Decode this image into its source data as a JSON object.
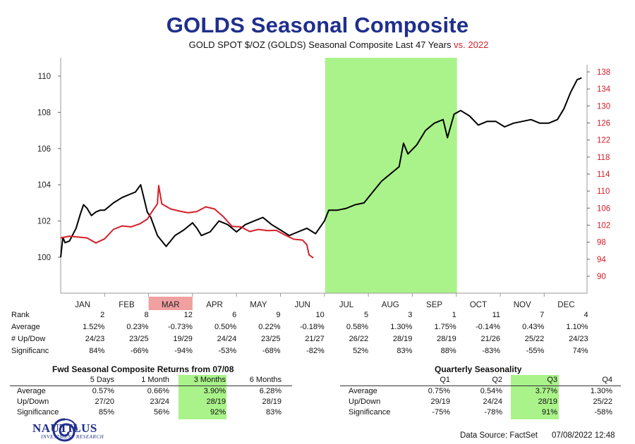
{
  "header": {
    "title": "GOLDS Seasonal Composite",
    "subtitle": "GOLD SPOT $/OZ (GOLDS) Seasonal Composite Last 47 Years",
    "vs_label": "vs. 2022"
  },
  "colors": {
    "title": "#1f2f8c",
    "composite_line": "#000000",
    "current_line": "#d4202a",
    "highlight_green": "#aaf38a",
    "highlight_red": "#f0a0a0"
  },
  "chart_data": {
    "type": "line",
    "title": "GOLD SPOT $/OZ (GOLDS) Seasonal Composite Last 47 Years",
    "months": [
      "JAN",
      "FEB",
      "MAR",
      "APR",
      "MAY",
      "JUN",
      "JUL",
      "AUG",
      "SEP",
      "OCT",
      "NOV",
      "DEC"
    ],
    "highlight_green_span_months": [
      6,
      9
    ],
    "highlight_red_month": "MAR",
    "y_left": {
      "ticks": [
        100,
        102,
        104,
        106,
        108,
        110
      ],
      "range": [
        98,
        110.7
      ]
    },
    "y_right": {
      "ticks": [
        90,
        94,
        98,
        102,
        106,
        110,
        114,
        118,
        122,
        126,
        130,
        134,
        138
      ],
      "range": [
        83.2,
        140.3
      ]
    },
    "series": [
      {
        "name": "Seasonal Composite (47 Years)",
        "axis": "left",
        "points": [
          [
            0,
            100.0
          ],
          [
            0.05,
            101.1
          ],
          [
            0.1,
            100.8
          ],
          [
            0.2,
            100.9
          ],
          [
            0.35,
            101.6
          ],
          [
            0.45,
            102.4
          ],
          [
            0.52,
            102.9
          ],
          [
            0.6,
            102.7
          ],
          [
            0.7,
            102.3
          ],
          [
            0.8,
            102.5
          ],
          [
            0.9,
            102.6
          ],
          [
            1.0,
            102.6
          ],
          [
            1.2,
            103.0
          ],
          [
            1.4,
            103.3
          ],
          [
            1.6,
            103.5
          ],
          [
            1.7,
            103.6
          ],
          [
            1.82,
            104.0
          ],
          [
            1.9,
            103.2
          ],
          [
            1.97,
            102.5
          ],
          [
            2.05,
            102.2
          ],
          [
            2.2,
            101.2
          ],
          [
            2.4,
            100.6
          ],
          [
            2.6,
            101.2
          ],
          [
            2.8,
            101.5
          ],
          [
            3.0,
            101.9
          ],
          [
            3.1,
            101.6
          ],
          [
            3.2,
            101.2
          ],
          [
            3.4,
            101.4
          ],
          [
            3.6,
            102.0
          ],
          [
            3.8,
            101.8
          ],
          [
            4.0,
            101.4
          ],
          [
            4.2,
            101.8
          ],
          [
            4.4,
            102.0
          ],
          [
            4.6,
            102.2
          ],
          [
            4.8,
            101.8
          ],
          [
            5.0,
            101.5
          ],
          [
            5.2,
            101.2
          ],
          [
            5.4,
            101.4
          ],
          [
            5.6,
            101.6
          ],
          [
            5.8,
            101.3
          ],
          [
            6.0,
            102.0
          ],
          [
            6.1,
            102.6
          ],
          [
            6.3,
            102.6
          ],
          [
            6.5,
            102.7
          ],
          [
            6.7,
            102.9
          ],
          [
            6.9,
            103.0
          ],
          [
            7.1,
            103.6
          ],
          [
            7.3,
            104.2
          ],
          [
            7.5,
            104.6
          ],
          [
            7.7,
            105.0
          ],
          [
            7.8,
            106.3
          ],
          [
            7.9,
            105.7
          ],
          [
            8.1,
            106.2
          ],
          [
            8.3,
            107.0
          ],
          [
            8.5,
            107.4
          ],
          [
            8.7,
            107.6
          ],
          [
            8.8,
            106.6
          ],
          [
            8.95,
            107.9
          ],
          [
            9.1,
            108.1
          ],
          [
            9.3,
            107.8
          ],
          [
            9.5,
            107.3
          ],
          [
            9.7,
            107.5
          ],
          [
            9.9,
            107.5
          ],
          [
            10.1,
            107.2
          ],
          [
            10.3,
            107.4
          ],
          [
            10.5,
            107.5
          ],
          [
            10.7,
            107.6
          ],
          [
            10.9,
            107.4
          ],
          [
            11.1,
            107.4
          ],
          [
            11.3,
            107.6
          ],
          [
            11.45,
            108.2
          ],
          [
            11.6,
            109.1
          ],
          [
            11.75,
            109.8
          ],
          [
            11.85,
            109.9
          ]
        ]
      },
      {
        "name": "2022",
        "axis": "right",
        "points": [
          [
            0,
            99.0
          ],
          [
            0.2,
            99.4
          ],
          [
            0.4,
            99.2
          ],
          [
            0.6,
            99.0
          ],
          [
            0.8,
            97.8
          ],
          [
            1.0,
            98.8
          ],
          [
            1.2,
            101.0
          ],
          [
            1.4,
            101.8
          ],
          [
            1.6,
            101.6
          ],
          [
            1.8,
            102.3
          ],
          [
            1.97,
            103.4
          ],
          [
            2.1,
            105.5
          ],
          [
            2.2,
            107.0
          ],
          [
            2.23,
            111.3
          ],
          [
            2.3,
            107.0
          ],
          [
            2.5,
            105.8
          ],
          [
            2.7,
            105.3
          ],
          [
            2.9,
            104.9
          ],
          [
            3.1,
            105.2
          ],
          [
            3.3,
            106.3
          ],
          [
            3.5,
            105.8
          ],
          [
            3.7,
            104.0
          ],
          [
            3.9,
            101.7
          ],
          [
            4.1,
            101.6
          ],
          [
            4.3,
            100.5
          ],
          [
            4.5,
            101.0
          ],
          [
            4.7,
            100.7
          ],
          [
            4.9,
            100.8
          ],
          [
            5.1,
            99.7
          ],
          [
            5.3,
            98.7
          ],
          [
            5.5,
            98.5
          ],
          [
            5.6,
            97.4
          ],
          [
            5.65,
            95.0
          ],
          [
            5.75,
            94.3
          ]
        ]
      }
    ]
  },
  "stats": {
    "row_labels": [
      "Rank",
      "Average",
      "# Up/Dow",
      "Significanc"
    ],
    "months": [
      {
        "rank": "2",
        "avg": "1.52%",
        "updown": "24/23",
        "sig": "84%"
      },
      {
        "rank": "8",
        "avg": "0.23%",
        "updown": "23/25",
        "sig": "-66%"
      },
      {
        "rank": "12",
        "avg": "-0.73%",
        "updown": "19/29",
        "sig": "-94%"
      },
      {
        "rank": "6",
        "avg": "0.50%",
        "updown": "24/24",
        "sig": "-53%"
      },
      {
        "rank": "9",
        "avg": "0.22%",
        "updown": "23/25",
        "sig": "-68%"
      },
      {
        "rank": "10",
        "avg": "-0.18%",
        "updown": "21/27",
        "sig": "-82%"
      },
      {
        "rank": "5",
        "avg": "0.58%",
        "updown": "26/22",
        "sig": "52%"
      },
      {
        "rank": "3",
        "avg": "1.30%",
        "updown": "28/19",
        "sig": "83%"
      },
      {
        "rank": "1",
        "avg": "1.75%",
        "updown": "28/19",
        "sig": "88%"
      },
      {
        "rank": "11",
        "avg": "-0.14%",
        "updown": "21/26",
        "sig": "-83%"
      },
      {
        "rank": "7",
        "avg": "0.43%",
        "updown": "25/22",
        "sig": "-55%"
      },
      {
        "rank": "4",
        "avg": "1.10%",
        "updown": "24/23",
        "sig": "74%"
      }
    ]
  },
  "fwd_table": {
    "title": "Fwd Seasonal Composite Returns from 07/08",
    "columns": [
      "5 Days",
      "1 Month",
      "3 Months",
      "6 Months"
    ],
    "rows": [
      {
        "label": "Average",
        "values": [
          "0.57%",
          "0.66%",
          "3.90%",
          "6.28%"
        ]
      },
      {
        "label": "Up/Down",
        "values": [
          "27/20",
          "23/24",
          "28/19",
          "28/19"
        ]
      },
      {
        "label": "Significance",
        "values": [
          "85%",
          "56%",
          "92%",
          "83%"
        ]
      }
    ]
  },
  "quarterly_table": {
    "title": "Quarterly Seasonality",
    "columns": [
      "Q1",
      "Q2",
      "Q3",
      "Q4"
    ],
    "rows": [
      {
        "label": "Average",
        "values": [
          "0.75%",
          "0.54%",
          "3.77%",
          "1.30%"
        ]
      },
      {
        "label": "Up/Down",
        "values": [
          "29/19",
          "24/24",
          "28/19",
          "25/22"
        ]
      },
      {
        "label": "Significance",
        "values": [
          "-75%",
          "-78%",
          "91%",
          "-58%"
        ]
      }
    ]
  },
  "logo": {
    "name": "NAUTILUS",
    "tagline": "INVESTMENT RESEARCH"
  },
  "footer": {
    "source": "Data Source: FactSet",
    "timestamp": "07/08/2022 12:48"
  }
}
